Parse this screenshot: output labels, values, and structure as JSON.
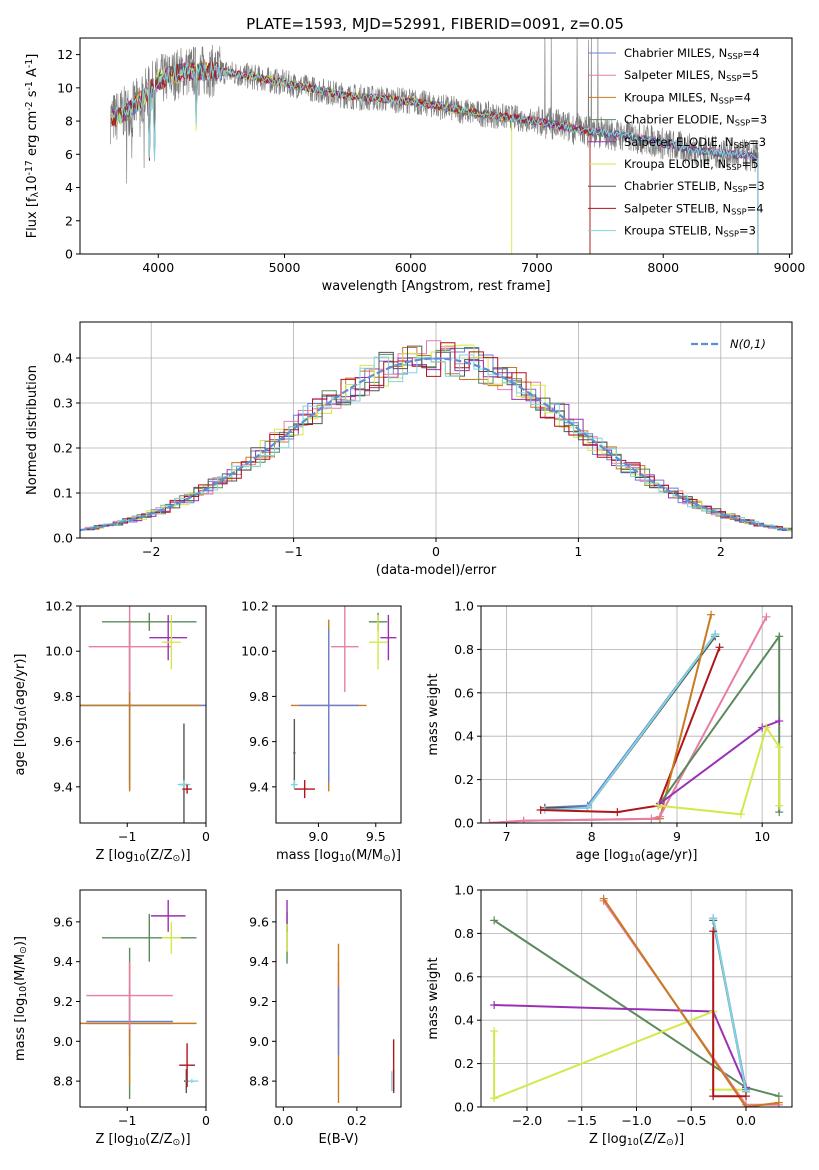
{
  "figure": {
    "title": "PLATE=1593, MJD=52991, FIBERID=0091, z=0.05"
  },
  "models": [
    {
      "name": "Chabrier MILES",
      "nssp": "4",
      "color": "#6b7fd7"
    },
    {
      "name": "Salpeter MILES",
      "nssp": "5",
      "color": "#e87ea8"
    },
    {
      "name": "Kroupa MILES",
      "nssp": "4",
      "color": "#c87a1e"
    },
    {
      "name": "Chabrier ELODIE",
      "nssp": "3",
      "color": "#5b8a5b"
    },
    {
      "name": "Salpeter ELODIE",
      "nssp": "3",
      "color": "#9b30b5"
    },
    {
      "name": "Kroupa ELODIE",
      "nssp": "5",
      "color": "#d4e84a"
    },
    {
      "name": "Chabrier STELIB",
      "nssp": "3",
      "color": "#555555"
    },
    {
      "name": "Salpeter STELIB",
      "nssp": "4",
      "color": "#b0141c"
    },
    {
      "name": "Kroupa STELIB",
      "nssp": "3",
      "color": "#7fd6de"
    }
  ],
  "chart_data": [
    {
      "id": "spectrum",
      "type": "line",
      "title": "PLATE=1593, MJD=52991, FIBERID=0091, z=0.05",
      "xlabel": "wavelength [Angstrom, rest frame]",
      "ylabel": "Flux [f$_\\lambda$10$^{-17}$ erg cm$^{-2}$ s$^{-1}$ A$^{-1}$]",
      "xlim": [
        3380,
        9020
      ],
      "ylim": [
        0,
        13
      ],
      "xticks": [
        4000,
        5000,
        6000,
        7000,
        8000,
        9000
      ],
      "yticks": [
        0,
        2,
        4,
        6,
        8,
        10,
        12
      ],
      "grid": false,
      "legend": "top-right",
      "data_envelope": {
        "wavelength": [
          3650,
          3800,
          4000,
          4200,
          4500,
          5000,
          5500,
          6000,
          6500,
          7000,
          7400,
          7800,
          8200,
          8800
        ],
        "flux": [
          8.2,
          8.8,
          10.4,
          11.0,
          11.0,
          10.3,
          9.5,
          9.2,
          8.5,
          8.0,
          7.4,
          7.0,
          6.3,
          5.8
        ]
      }
    },
    {
      "id": "residual-histogram",
      "type": "line",
      "xlabel": "(data-model)/error",
      "ylabel": "Normed distribution",
      "xlim": [
        -2.5,
        2.5
      ],
      "ylim": [
        0,
        0.48
      ],
      "xticks": [
        -2,
        -1,
        0,
        1,
        2
      ],
      "yticks": [
        0.0,
        0.1,
        0.2,
        0.3,
        0.4
      ],
      "grid": true,
      "legend": "top-right",
      "reference_label": "$\\mathcal{N}(0,1)$",
      "reference_color": "#5b8fd6"
    },
    {
      "id": "age-vs-Z",
      "type": "scatter",
      "xlabel": "Z [log$_{10}$(Z/Z$_\\odot$)]",
      "ylabel": "age  [log$_{10}$(age/yr)]",
      "xlim": [
        -1.6,
        0.0
      ],
      "ylim": [
        9.24,
        10.2
      ],
      "xticks": [
        -1,
        0
      ],
      "yticks": [
        9.4,
        9.6,
        9.8,
        10.0,
        10.2
      ],
      "points": [
        {
          "m": 3,
          "x": -0.97,
          "y": 9.76,
          "xerr": 1.12,
          "yerr": 0.37
        },
        {
          "m": 0,
          "x": -0.97,
          "y": 9.76,
          "xerr": 1.0,
          "yerr": 0.34
        },
        {
          "m": 2,
          "x": -0.97,
          "y": 9.76,
          "xerr": 0.9,
          "yerr": 0.38
        },
        {
          "m": 1,
          "x": -0.97,
          "y": 10.02,
          "xerr": 0.52,
          "yerr": 0.2
        },
        {
          "m": 3,
          "x": -0.72,
          "y": 10.13,
          "xerr": 0.6,
          "yerr": 0.04
        },
        {
          "m": 4,
          "x": -0.48,
          "y": 10.06,
          "xerr": 0.24,
          "yerr": 0.1
        },
        {
          "m": 5,
          "x": -0.44,
          "y": 10.04,
          "xerr": 0.12,
          "yerr": 0.12
        },
        {
          "m": 6,
          "x": -0.28,
          "y": 9.41,
          "xerr": 0.05,
          "yerr": 0.27
        },
        {
          "m": 8,
          "x": -0.28,
          "y": 9.41,
          "xerr": 0.08,
          "yerr": 0.02
        },
        {
          "m": 7,
          "x": -0.24,
          "y": 9.39,
          "xerr": 0.06,
          "yerr": 0.02
        }
      ]
    },
    {
      "id": "age-vs-mass",
      "type": "scatter",
      "xlabel": "mass [log$_{10}$(M/M$_\\odot$)]",
      "xlim": [
        8.63,
        9.72
      ],
      "ylim": [
        9.24,
        10.2
      ],
      "xticks": [
        9.0,
        9.5
      ],
      "yticks": [
        9.4,
        9.6,
        9.8,
        10.0,
        10.2
      ],
      "points": [
        {
          "m": 2,
          "x": 9.09,
          "y": 9.76,
          "xerr": 0.33,
          "yerr": 0.38
        },
        {
          "m": 0,
          "x": 9.09,
          "y": 9.76,
          "xerr": 0.26,
          "yerr": 0.34
        },
        {
          "m": 1,
          "x": 9.23,
          "y": 10.02,
          "xerr": 0.12,
          "yerr": 0.2
        },
        {
          "m": 3,
          "x": 9.52,
          "y": 10.13,
          "xerr": 0.08,
          "yerr": 0.04
        },
        {
          "m": 4,
          "x": 9.61,
          "y": 10.06,
          "xerr": 0.07,
          "yerr": 0.1
        },
        {
          "m": 5,
          "x": 9.52,
          "y": 10.04,
          "xerr": 0.08,
          "yerr": 0.12
        },
        {
          "m": 6,
          "x": 8.79,
          "y": 9.55,
          "xerr": 0.01,
          "yerr": 0.15
        },
        {
          "m": 8,
          "x": 8.79,
          "y": 9.41,
          "xerr": 0.03,
          "yerr": 0.02
        },
        {
          "m": 7,
          "x": 8.88,
          "y": 9.39,
          "xerr": 0.09,
          "yerr": 0.04
        }
      ]
    },
    {
      "id": "massweight-vs-age",
      "type": "line",
      "xlabel": "age  [log$_{10}$(age/yr)]",
      "ylabel": "mass weight",
      "xlim": [
        6.7,
        10.35
      ],
      "ylim": [
        0,
        1.0
      ],
      "xticks": [
        7,
        8,
        9,
        10
      ],
      "yticks": [
        0.0,
        0.2,
        0.4,
        0.6,
        0.8,
        1.0
      ],
      "grid": true,
      "series": [
        {
          "m": 0,
          "x": [
            7.45,
            7.95,
            9.45
          ],
          "y": [
            0.07,
            0.08,
            0.87
          ]
        },
        {
          "m": 6,
          "x": [
            7.45,
            7.95,
            9.45
          ],
          "y": [
            0.07,
            0.07,
            0.86
          ]
        },
        {
          "m": 8,
          "x": [
            7.45,
            7.95,
            9.45
          ],
          "y": [
            0.06,
            0.07,
            0.87
          ]
        },
        {
          "m": 7,
          "x": [
            7.4,
            8.3,
            8.78,
            9.5
          ],
          "y": [
            0.06,
            0.05,
            0.08,
            0.81
          ]
        },
        {
          "m": 2,
          "x": [
            6.8,
            7.2,
            8.8,
            9.4
          ],
          "y": [
            0.0,
            0.01,
            0.02,
            0.96
          ]
        },
        {
          "m": 1,
          "x": [
            6.8,
            7.2,
            8.7,
            8.8,
            10.05
          ],
          "y": [
            0.0,
            0.01,
            0.02,
            0.03,
            0.95
          ]
        },
        {
          "m": 3,
          "x": [
            8.8,
            10.2,
            10.2
          ],
          "y": [
            0.09,
            0.86,
            0.05
          ]
        },
        {
          "m": 4,
          "x": [
            8.8,
            10.0,
            10.2
          ],
          "y": [
            0.09,
            0.44,
            0.47
          ]
        },
        {
          "m": 5,
          "x": [
            8.78,
            9.75,
            10.05,
            10.2,
            10.2
          ],
          "y": [
            0.08,
            0.04,
            0.44,
            0.35,
            0.08
          ]
        }
      ]
    },
    {
      "id": "mass-vs-Z",
      "type": "scatter",
      "xlabel": "Z [log$_{10}$(Z/Z$_\\odot$)]",
      "ylabel": "mass [log$_{10}$(M/M$_\\odot$)]",
      "xlim": [
        -1.6,
        0.0
      ],
      "ylim": [
        8.67,
        9.76
      ],
      "xticks": [
        -1,
        0
      ],
      "yticks": [
        8.8,
        9.0,
        9.2,
        9.4,
        9.6
      ],
      "points": [
        {
          "m": 3,
          "x": -0.97,
          "y": 9.09,
          "xerr": 0.55,
          "yerr": 0.38
        },
        {
          "m": 0,
          "x": -0.97,
          "y": 9.1,
          "xerr": 0.55,
          "yerr": 0.17
        },
        {
          "m": 2,
          "x": -0.97,
          "y": 9.09,
          "xerr": 0.85,
          "yerr": 0.31
        },
        {
          "m": 1,
          "x": -0.97,
          "y": 9.23,
          "xerr": 0.55,
          "yerr": 0.17
        },
        {
          "m": 3,
          "x": -0.72,
          "y": 9.52,
          "xerr": 0.6,
          "yerr": 0.12
        },
        {
          "m": 4,
          "x": -0.48,
          "y": 9.63,
          "xerr": 0.22,
          "yerr": 0.08
        },
        {
          "m": 5,
          "x": -0.44,
          "y": 9.52,
          "xerr": 0.12,
          "yerr": 0.08
        },
        {
          "m": 6,
          "x": -0.25,
          "y": 8.8,
          "xerr": 0.03,
          "yerr": 0.06
        },
        {
          "m": 8,
          "x": -0.18,
          "y": 8.8,
          "xerr": 0.08,
          "yerr": 0.01
        },
        {
          "m": 7,
          "x": -0.24,
          "y": 8.88,
          "xerr": 0.1,
          "yerr": 0.11
        }
      ]
    },
    {
      "id": "mass-vs-EBV",
      "type": "scatter",
      "xlabel": "E(B-V)",
      "xlim": [
        -0.02,
        0.32
      ],
      "ylim": [
        8.67,
        9.76
      ],
      "xticks": [
        0.0,
        0.2
      ],
      "yticks": [
        8.8,
        9.0,
        9.2,
        9.4,
        9.6
      ],
      "points": [
        {
          "m": 3,
          "x": 0.01,
          "y": 9.52,
          "xerr": 0,
          "yerr": 0.13
        },
        {
          "m": 4,
          "x": 0.01,
          "y": 9.63,
          "xerr": 0,
          "yerr": 0.08
        },
        {
          "m": 5,
          "x": 0.01,
          "y": 9.52,
          "xerr": 0,
          "yerr": 0.07
        },
        {
          "m": 1,
          "x": 0.15,
          "y": 9.23,
          "xerr": 0,
          "yerr": 0.17
        },
        {
          "m": 2,
          "x": 0.15,
          "y": 9.09,
          "xerr": 0,
          "yerr": 0.4
        },
        {
          "m": 0,
          "x": 0.15,
          "y": 9.1,
          "xerr": 0,
          "yerr": 0.17
        },
        {
          "m": 8,
          "x": 0.295,
          "y": 8.8,
          "xerr": 0,
          "yerr": 0.05
        },
        {
          "m": 6,
          "x": 0.3,
          "y": 8.8,
          "xerr": 0,
          "yerr": 0.06
        },
        {
          "m": 7,
          "x": 0.3,
          "y": 8.88,
          "xerr": 0,
          "yerr": 0.13
        }
      ]
    },
    {
      "id": "massweight-vs-Z",
      "type": "line",
      "xlabel": "Z [log$_{10}$(Z/Z$_\\odot$)]",
      "ylabel": "mass weight",
      "xlim": [
        -2.42,
        0.42
      ],
      "ylim": [
        0,
        1.0
      ],
      "xticks": [
        -2.0,
        -1.5,
        -1.0,
        -0.5,
        0.0
      ],
      "yticks": [
        0.0,
        0.2,
        0.4,
        0.6,
        0.8,
        1.0
      ],
      "grid": true,
      "series": [
        {
          "m": 3,
          "x": [
            -2.3,
            0.0,
            0.3
          ],
          "y": [
            0.86,
            0.09,
            0.05
          ]
        },
        {
          "m": 4,
          "x": [
            -2.3,
            -0.3,
            0.0
          ],
          "y": [
            0.47,
            0.44,
            0.09
          ]
        },
        {
          "m": 5,
          "x": [
            -2.3,
            -2.3,
            -0.3,
            -0.3,
            0.0
          ],
          "y": [
            0.35,
            0.04,
            0.44,
            0.08,
            0.08
          ]
        },
        {
          "m": 1,
          "x": [
            -1.3,
            0.0,
            0.3
          ],
          "y": [
            0.95,
            0.01,
            0.01
          ]
        },
        {
          "m": 2,
          "x": [
            -1.3,
            0.0,
            0.3
          ],
          "y": [
            0.96,
            0.0,
            0.02
          ]
        },
        {
          "m": 0,
          "x": [
            -0.3,
            0.0
          ],
          "y": [
            0.87,
            0.08
          ]
        },
        {
          "m": 6,
          "x": [
            -0.3,
            0.0
          ],
          "y": [
            0.86,
            0.07
          ]
        },
        {
          "m": 8,
          "x": [
            -0.3,
            0.0
          ],
          "y": [
            0.87,
            0.07
          ]
        },
        {
          "m": 7,
          "x": [
            -0.3,
            -0.3,
            0.0
          ],
          "y": [
            0.81,
            0.05,
            0.05
          ]
        }
      ]
    }
  ]
}
